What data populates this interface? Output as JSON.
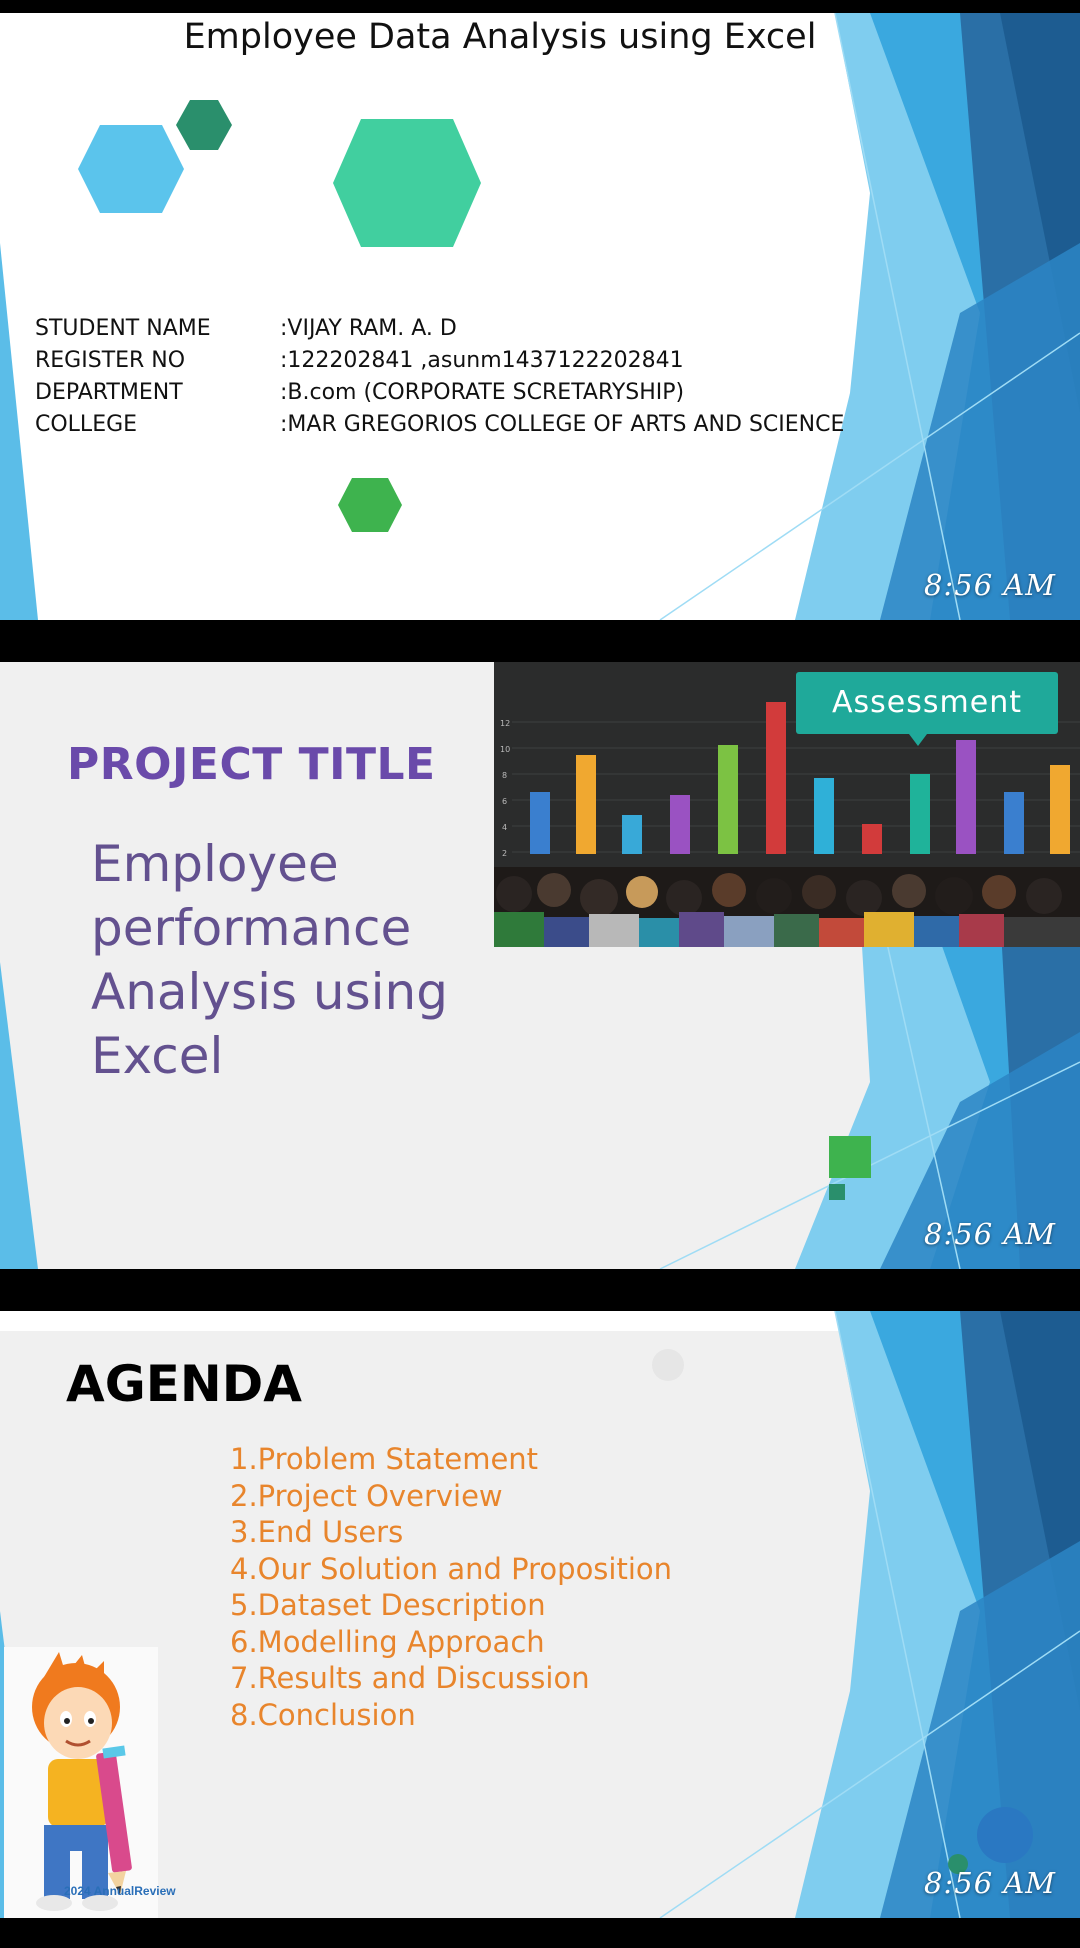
{
  "slides": {
    "slide1": {
      "title": "Employee Data Analysis using Excel",
      "fields": [
        {
          "label": "STUDENT NAME",
          "value": ":VIJAY RAM. A. D"
        },
        {
          "label": "REGISTER NO",
          "value": ":122202841 ,asunm1437122202841"
        },
        {
          "label": "DEPARTMENT",
          "value": ":B.com (CORPORATE SCRETARYSHIP)"
        },
        {
          "label": "COLLEGE",
          "value": ":MAR GREGORIOS COLLEGE OF ARTS AND SCIENCE"
        }
      ],
      "time": "8:56 AM"
    },
    "slide2": {
      "heading": "PROJECT TITLE",
      "project_title": "Employee performance Analysis using Excel",
      "image_banner": "Assessment",
      "time": "8:56 AM"
    },
    "slide3": {
      "heading": "AGENDA",
      "items": [
        "1.Problem Statement",
        "2.Project Overview",
        "3.End Users",
        "4.Our Solution and Proposition",
        "5.Dataset Description",
        "6.Modelling Approach",
        "7.Results and Discussion",
        "8.Conclusion"
      ],
      "image_caption": "2024 AnnualReview",
      "time": "8:56 AM"
    }
  },
  "colors": {
    "theme_blue": "#2f8fcf",
    "project_title_purple": "#6a4aaa",
    "agenda_orange": "#e8852c"
  }
}
